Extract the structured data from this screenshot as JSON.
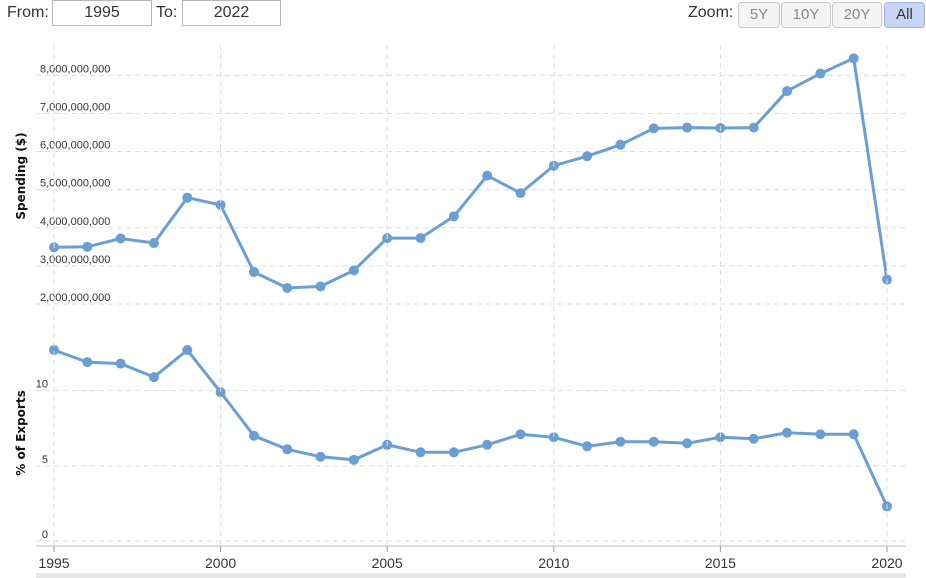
{
  "range": {
    "from_label": "From:",
    "from_value": "1995",
    "to_label": "To:",
    "to_value": "2022"
  },
  "zoom": {
    "label": "Zoom:",
    "buttons": [
      "5Y",
      "10Y",
      "20Y",
      "All"
    ],
    "active": "All"
  },
  "colors": {
    "series": "#6a9fd4",
    "grid": "#dddddd",
    "text": "#333333"
  },
  "chart_data": [
    {
      "type": "line",
      "ylabel": "Spending ($)",
      "x": [
        1995,
        1996,
        1997,
        1998,
        1999,
        2000,
        2001,
        2002,
        2003,
        2004,
        2005,
        2006,
        2007,
        2008,
        2009,
        2010,
        2011,
        2012,
        2013,
        2014,
        2015,
        2016,
        2017,
        2018,
        2019,
        2020
      ],
      "values": [
        3490000000,
        3500000000,
        3720000000,
        3600000000,
        4790000000,
        4600000000,
        2840000000,
        2420000000,
        2460000000,
        2880000000,
        3730000000,
        3730000000,
        4300000000,
        5370000000,
        4910000000,
        5630000000,
        5880000000,
        6180000000,
        6610000000,
        6630000000,
        6620000000,
        6630000000,
        7590000000,
        8050000000,
        8450000000,
        2640000000
      ],
      "ytick_labels": [
        "2,000,000,000",
        "3,000,000,000",
        "4,000,000,000",
        "5,000,000,000",
        "6,000,000,000",
        "7,000,000,000",
        "8,000,000,000"
      ],
      "ytick_values": [
        2000000000,
        3000000000,
        4000000000,
        5000000000,
        6000000000,
        7000000000,
        8000000000
      ],
      "ylim": [
        1500000000,
        8800000000
      ],
      "grid": true
    },
    {
      "type": "line",
      "ylabel": "% of Exports",
      "x": [
        1995,
        1996,
        1997,
        1998,
        1999,
        2000,
        2001,
        2002,
        2003,
        2004,
        2005,
        2006,
        2007,
        2008,
        2009,
        2010,
        2011,
        2012,
        2013,
        2014,
        2015,
        2016,
        2017,
        2018,
        2019,
        2020
      ],
      "values": [
        12.7,
        11.9,
        11.8,
        10.9,
        12.7,
        9.9,
        7.0,
        6.1,
        5.6,
        5.4,
        6.4,
        5.9,
        5.9,
        6.4,
        7.1,
        6.9,
        6.3,
        6.6,
        6.6,
        6.5,
        6.9,
        6.8,
        7.2,
        7.1,
        7.1,
        2.3
      ],
      "ytick_labels": [
        "0",
        "5",
        "10"
      ],
      "ytick_values": [
        0,
        5,
        10
      ],
      "ylim": [
        0,
        14.5
      ],
      "grid": true
    }
  ],
  "xaxis": {
    "tick_labels": [
      "1995",
      "2000",
      "2005",
      "2010",
      "2015",
      "2020"
    ],
    "tick_values": [
      1995,
      2000,
      2005,
      2010,
      2015,
      2020
    ],
    "xlim": [
      1995,
      2020
    ]
  }
}
